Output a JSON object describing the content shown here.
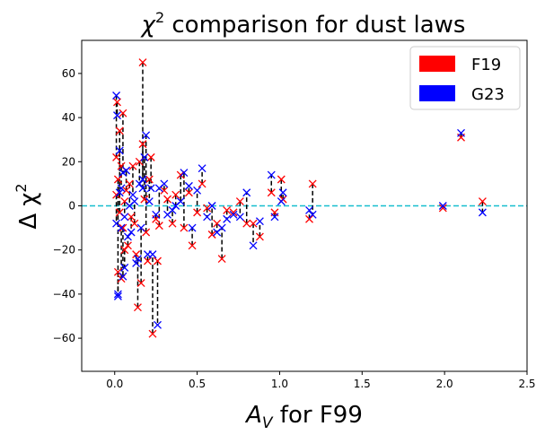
{
  "chart_data": {
    "type": "scatter",
    "title_main": "χ",
    "title_sup": "2",
    "title_rest": " comparison for dust laws",
    "xlabel_main": "A",
    "xlabel_sub": "V",
    "xlabel_rest": " for F99",
    "ylabel_main": "Δ χ",
    "ylabel_sup": "2",
    "xlim": [
      -0.2,
      2.5
    ],
    "ylim": [
      -75,
      75
    ],
    "xticks": [
      0.0,
      0.5,
      1.0,
      1.5,
      2.0,
      2.5
    ],
    "xtick_labels": [
      "0.0",
      "0.5",
      "1.0",
      "1.5",
      "2.0",
      "2.5"
    ],
    "yticks": [
      -60,
      -40,
      -20,
      0,
      20,
      40,
      60
    ],
    "ytick_labels": [
      "−60",
      "−40",
      "−20",
      "0",
      "20",
      "40",
      "60"
    ],
    "reference_line": {
      "y": 0,
      "color": "#17becf",
      "style": "dashed"
    },
    "connector_color": "#000000",
    "legend_position": "top-right",
    "series": [
      {
        "name": "F19",
        "color": "#ff0000",
        "marker": "x"
      },
      {
        "name": "G23",
        "color": "#0000ff",
        "marker": "x"
      }
    ],
    "pairs": [
      {
        "x": 0.01,
        "f19": 22,
        "g23": 50
      },
      {
        "x": 0.015,
        "f19": 47,
        "g23": 41
      },
      {
        "x": 0.02,
        "f19": 12,
        "g23": -40
      },
      {
        "x": 0.02,
        "f19": -30,
        "g23": -41
      },
      {
        "x": 0.01,
        "f19": 5,
        "g23": -8
      },
      {
        "x": 0.03,
        "f19": -3,
        "g23": 25
      },
      {
        "x": 0.03,
        "f19": 34,
        "g23": 6
      },
      {
        "x": 0.04,
        "f19": 18,
        "g23": 8
      },
      {
        "x": 0.04,
        "f19": -33,
        "g23": -10
      },
      {
        "x": 0.05,
        "f19": 42,
        "g23": 15
      },
      {
        "x": 0.05,
        "f19": -10,
        "g23": -32
      },
      {
        "x": 0.06,
        "f19": 2,
        "g23": -5
      },
      {
        "x": 0.06,
        "f19": -20,
        "g23": -28
      },
      {
        "x": 0.07,
        "f19": 7,
        "g23": 16
      },
      {
        "x": 0.08,
        "f19": -18,
        "g23": -14
      },
      {
        "x": 0.09,
        "f19": 10,
        "g23": 0
      },
      {
        "x": 0.1,
        "f19": -5,
        "g23": -12
      },
      {
        "x": 0.11,
        "f19": 18,
        "g23": 5
      },
      {
        "x": 0.12,
        "f19": -8,
        "g23": 2
      },
      {
        "x": 0.13,
        "f19": -22,
        "g23": -26
      },
      {
        "x": 0.14,
        "f19": -46,
        "g23": -24
      },
      {
        "x": 0.15,
        "f19": 20,
        "g23": 10
      },
      {
        "x": 0.16,
        "f19": -35,
        "g23": -10
      },
      {
        "x": 0.17,
        "f19": 65,
        "g23": 8
      },
      {
        "x": 0.17,
        "f19": 28,
        "g23": 12
      },
      {
        "x": 0.18,
        "f19": 3,
        "g23": 22
      },
      {
        "x": 0.19,
        "f19": -12,
        "g23": 32
      },
      {
        "x": 0.2,
        "f19": -25,
        "g23": -22
      },
      {
        "x": 0.21,
        "f19": 12,
        "g23": 2
      },
      {
        "x": 0.22,
        "f19": 22,
        "g23": 8
      },
      {
        "x": 0.23,
        "f19": -58,
        "g23": -22
      },
      {
        "x": 0.25,
        "f19": -6,
        "g23": -4
      },
      {
        "x": 0.26,
        "f19": -25,
        "g23": -54
      },
      {
        "x": 0.27,
        "f19": -9,
        "g23": 8
      },
      {
        "x": 0.3,
        "f19": 7,
        "g23": 10
      },
      {
        "x": 0.32,
        "f19": 3,
        "g23": -4
      },
      {
        "x": 0.35,
        "f19": -8,
        "g23": -2
      },
      {
        "x": 0.37,
        "f19": 5,
        "g23": 0
      },
      {
        "x": 0.4,
        "f19": 14,
        "g23": 2
      },
      {
        "x": 0.42,
        "f19": -10,
        "g23": 15
      },
      {
        "x": 0.45,
        "f19": 6,
        "g23": 9
      },
      {
        "x": 0.47,
        "f19": -18,
        "g23": -10
      },
      {
        "x": 0.5,
        "f19": -3,
        "g23": 7
      },
      {
        "x": 0.53,
        "f19": 10,
        "g23": 17
      },
      {
        "x": 0.56,
        "f19": -1,
        "g23": -5
      },
      {
        "x": 0.59,
        "f19": -13,
        "g23": 0
      },
      {
        "x": 0.62,
        "f19": -8,
        "g23": -12
      },
      {
        "x": 0.65,
        "f19": -24,
        "g23": -10
      },
      {
        "x": 0.68,
        "f19": -2,
        "g23": -6
      },
      {
        "x": 0.72,
        "f19": -3,
        "g23": -4
      },
      {
        "x": 0.76,
        "f19": 2,
        "g23": -5
      },
      {
        "x": 0.8,
        "f19": -8,
        "g23": 6
      },
      {
        "x": 0.84,
        "f19": -8,
        "g23": -18
      },
      {
        "x": 0.88,
        "f19": -14,
        "g23": -7
      },
      {
        "x": 0.95,
        "f19": 6,
        "g23": 14
      },
      {
        "x": 0.97,
        "f19": -3,
        "g23": -5
      },
      {
        "x": 1.01,
        "f19": 12,
        "g23": 2
      },
      {
        "x": 1.02,
        "f19": 3,
        "g23": 6
      },
      {
        "x": 1.18,
        "f19": -6,
        "g23": -2
      },
      {
        "x": 1.2,
        "f19": 10,
        "g23": -4
      },
      {
        "x": 1.99,
        "f19": -1,
        "g23": 0
      },
      {
        "x": 2.1,
        "f19": 31,
        "g23": 33
      },
      {
        "x": 2.23,
        "f19": 2,
        "g23": -3
      }
    ]
  }
}
